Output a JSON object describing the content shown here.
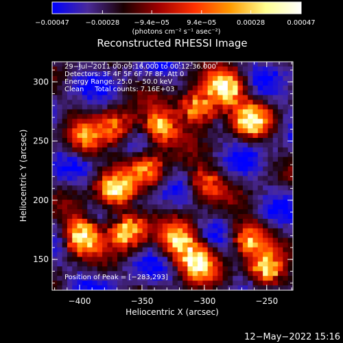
{
  "chart_data": {
    "type": "heatmap",
    "title": "Reconstructed RHESSI Image",
    "xlabel": "Heliocentric X (arcsec)",
    "ylabel": "Heliocentric Y (arcsec)",
    "xlim": [
      -422,
      -229
    ],
    "ylim": [
      124,
      317
    ],
    "x_ticks": [
      -400,
      -350,
      -300,
      -250
    ],
    "x_tick_labels": [
      "−400",
      "−350",
      "−300",
      "−250"
    ],
    "y_ticks": [
      150,
      200,
      250,
      300
    ],
    "y_tick_labels": [
      "150",
      "200",
      "250",
      "300"
    ],
    "colorbar": {
      "range": [
        -0.00047,
        0.00047
      ],
      "tick_values": [
        -0.00047,
        -0.00028,
        -9.4e-05,
        9.4e-05,
        0.00028,
        0.00047
      ],
      "tick_labels": [
        "−0.00047",
        "−0.00028",
        "−9.4e−05",
        "9.4e−05",
        "0.00028",
        "0.00047"
      ],
      "unit_text": "(photons cm⁻² s⁻¹ asec⁻²)",
      "colors": [
        "#0000ff",
        "#4a2a9a",
        "#1a0000",
        "#a00000",
        "#ff3000",
        "#ff9a00",
        "#ffff90",
        "#ffffff"
      ]
    },
    "annotations": [
      "29−Jul−2011 00:09:16.000 to 00:12:36.000",
      "Detectors: 3F 4F 5F 6F 7F 8F, Att 0",
      "Energy Range: 25.0 − 50.0 keV",
      "Clean     Total counts: 7.16E+03"
    ],
    "peak_label": "Position of Peak = [−283,293]",
    "peak": [
      -283,
      293
    ],
    "hot_regions": [
      {
        "x": -283,
        "y": 293,
        "level": 1.0
      },
      {
        "x": -305,
        "y": 278,
        "level": 0.85
      },
      {
        "x": -262,
        "y": 268,
        "level": 0.7
      },
      {
        "x": -335,
        "y": 262,
        "level": 0.75
      },
      {
        "x": -370,
        "y": 262,
        "level": 0.6
      },
      {
        "x": -395,
        "y": 250,
        "level": 0.5
      },
      {
        "x": -372,
        "y": 208,
        "level": 0.8
      },
      {
        "x": -398,
        "y": 170,
        "level": 0.95
      },
      {
        "x": -362,
        "y": 175,
        "level": 0.85
      },
      {
        "x": -320,
        "y": 165,
        "level": 0.75
      },
      {
        "x": -305,
        "y": 148,
        "level": 0.9
      },
      {
        "x": -265,
        "y": 168,
        "level": 0.65
      },
      {
        "x": -250,
        "y": 140,
        "level": 0.8
      },
      {
        "x": -345,
        "y": 225,
        "level": 0.55
      },
      {
        "x": -300,
        "y": 215,
        "level": 0.5
      }
    ],
    "grid": false
  },
  "footer_timestamp": "12−May−2022 15:16"
}
